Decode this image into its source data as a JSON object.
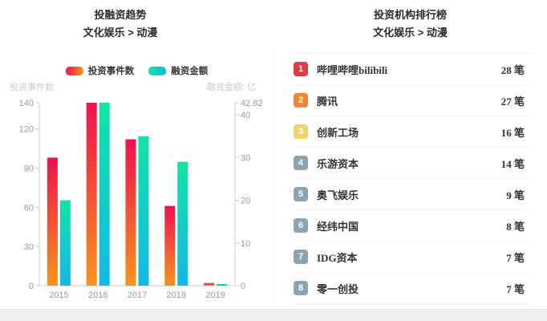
{
  "page": {
    "left_panel": {
      "title": "投融资趋势",
      "subtitle": "文化娱乐 > 动漫"
    },
    "right_panel": {
      "title": "投资机构排行榜",
      "subtitle": "文化娱乐 > 动漫"
    }
  },
  "chart_data": {
    "type": "bar",
    "title": "投融资趋势",
    "subtitle": "文化娱乐 > 动漫",
    "categories": [
      "2015",
      "2016",
      "2017",
      "2018",
      "2019"
    ],
    "series": [
      {
        "name": "投资事件数",
        "axis": "left",
        "values": [
          98,
          140,
          112,
          61,
          2
        ],
        "gradient": [
          "#f0114e",
          "#f6941c"
        ]
      },
      {
        "name": "融资金额",
        "axis": "right",
        "values": [
          20,
          42.82,
          35,
          29,
          0.4
        ],
        "gradient": [
          "#12e3a4",
          "#14b8e6"
        ]
      }
    ],
    "left_axis": {
      "name": "投资事件数",
      "max": 140,
      "ticks": [
        0,
        30,
        60,
        90,
        120,
        140
      ]
    },
    "right_axis": {
      "name": "融资金额: 亿",
      "max": 42.82,
      "ticks": [
        0,
        10,
        20,
        30,
        40,
        42.82
      ]
    },
    "grid": false,
    "legend_position": "top",
    "axis_colors": {
      "line": "#cccccc",
      "tick_label": "#999999",
      "axis_name": "#c6cbd0"
    }
  },
  "ranking": {
    "title": "投资机构排行榜",
    "subtitle": "文化娱乐 > 动漫",
    "unit": "笔",
    "items": [
      {
        "rank": 1,
        "name": "哔哩哔哩bilibili",
        "count": 28,
        "count_label": "28 笔",
        "badge_color": "#e53a40"
      },
      {
        "rank": 2,
        "name": "腾讯",
        "count": 27,
        "count_label": "27 笔",
        "badge_color": "#f0862d"
      },
      {
        "rank": 3,
        "name": "创新工场",
        "count": 16,
        "count_label": "16 笔",
        "badge_color": "#f2d264"
      },
      {
        "rank": 4,
        "name": "乐游资本",
        "count": 14,
        "count_label": "14 笔",
        "badge_color": "#8ba3b2"
      },
      {
        "rank": 5,
        "name": "奥飞娱乐",
        "count": 9,
        "count_label": "9 笔",
        "badge_color": "#8ba3b2"
      },
      {
        "rank": 6,
        "name": "经纬中国",
        "count": 8,
        "count_label": "8 笔",
        "badge_color": "#8ba3b2"
      },
      {
        "rank": 7,
        "name": "IDG资本",
        "count": 7,
        "count_label": "7 笔",
        "badge_color": "#8ba3b2"
      },
      {
        "rank": 8,
        "name": "零一创投",
        "count": 7,
        "count_label": "7 笔",
        "badge_color": "#8ba3b2"
      }
    ]
  }
}
